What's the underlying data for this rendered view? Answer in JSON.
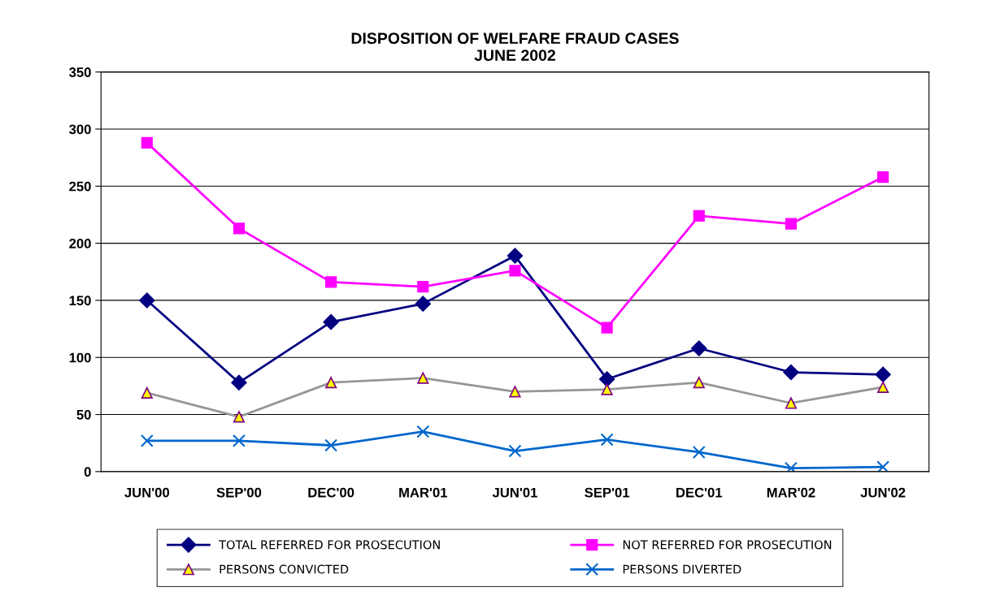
{
  "chart_data": {
    "type": "line",
    "title": "DISPOSITION OF WELFARE FRAUD CASES\nJUNE 2002",
    "categories": [
      "JUN'00",
      "SEP'00",
      "DEC'00",
      "MAR'01",
      "JUN'01",
      "SEP'01",
      "DEC'01",
      "MAR'02",
      "JUN'02"
    ],
    "series": [
      {
        "name": "TOTAL REFERRED FOR PROSECUTION",
        "color": "#000080",
        "marker": "diamond",
        "values": [
          150,
          78,
          131,
          147,
          189,
          81,
          108,
          87,
          85
        ]
      },
      {
        "name": "NOT REFERRED FOR PROSECUTION",
        "color": "#ff00ff",
        "marker": "square",
        "values": [
          288,
          213,
          166,
          162,
          176,
          126,
          224,
          217,
          258
        ]
      },
      {
        "name": "PERSONS CONVICTED",
        "color": "#969696",
        "marker": "triangle",
        "values": [
          69,
          48,
          78,
          82,
          70,
          72,
          78,
          60,
          74
        ]
      },
      {
        "name": "PERSONS DIVERTED",
        "color": "#0066cc",
        "marker": "cross",
        "values": [
          27,
          27,
          23,
          35,
          18,
          28,
          17,
          3,
          4
        ]
      }
    ],
    "ylim": [
      0,
      350
    ],
    "yticks": [
      0,
      50,
      100,
      150,
      200,
      250,
      300,
      350
    ],
    "grid": "y",
    "legend": "bottom",
    "line_style": "solid"
  }
}
